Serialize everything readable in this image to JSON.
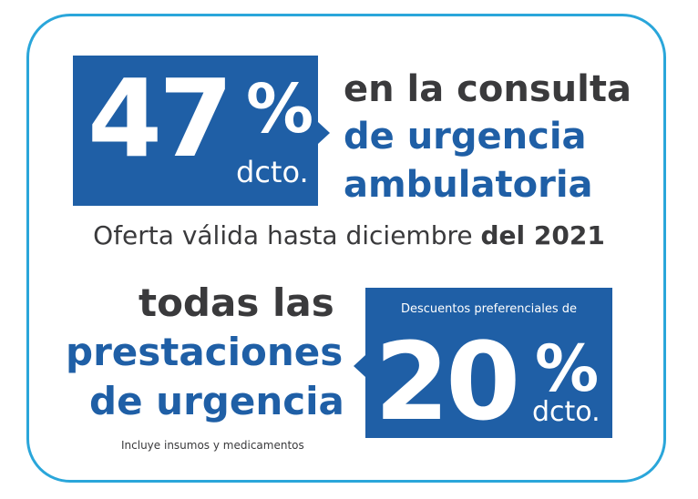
{
  "top_offer": {
    "number": "47",
    "percent_sign": "%",
    "dcto": "dcto.",
    "line1": "en la consulta",
    "line2": "de urgencia",
    "line3": "ambulatoria"
  },
  "validity": {
    "text": "Oferta válida hasta diciembre ",
    "bold": "del 2021"
  },
  "bottom_offer": {
    "line1": "todas las",
    "line2": "prestaciones",
    "line3": "de urgencia",
    "note": "Incluye insumos y medicamentos",
    "box_caption": "Descuentos preferenciales de",
    "number": "20",
    "percent_sign": "%",
    "dcto": "dcto."
  },
  "colors": {
    "brand_blue": "#1f5fa6",
    "border_cyan": "#2aa6da",
    "text_dark": "#3a3a3c"
  }
}
